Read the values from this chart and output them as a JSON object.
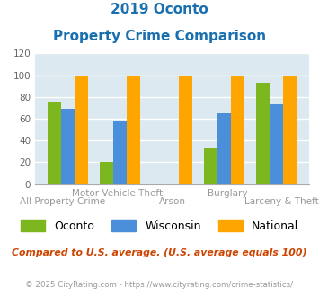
{
  "title_line1": "2019 Oconto",
  "title_line2": "Property Crime Comparison",
  "title_color": "#1a6faf",
  "groups": [
    {
      "label": "All Property Crime",
      "oconto": 76,
      "wisconsin": 69,
      "national": 100
    },
    {
      "label": "Motor Vehicle Theft",
      "oconto": 20,
      "wisconsin": 58,
      "national": 100
    },
    {
      "label": "Arson",
      "oconto": 0,
      "wisconsin": 0,
      "national": 100
    },
    {
      "label": "Burglary",
      "oconto": 33,
      "wisconsin": 65,
      "national": 100
    },
    {
      "label": "Larceny & Theft",
      "oconto": 93,
      "wisconsin": 73,
      "national": 100
    }
  ],
  "color_oconto": "#7db720",
  "color_wisconsin": "#4b8fdb",
  "color_national": "#ffa500",
  "ylim": [
    0,
    120
  ],
  "yticks": [
    0,
    20,
    40,
    60,
    80,
    100,
    120
  ],
  "bg_color": "#dce9f0",
  "grid_color": "#ffffff",
  "note_text": "Compared to U.S. average. (U.S. average equals 100)",
  "note_color": "#cc4400",
  "footer_text": "© 2025 CityRating.com - https://www.cityrating.com/crime-statistics/",
  "footer_color": "#999999",
  "xlabel_color": "#999999",
  "xlabel_labels_top": [
    "",
    "Motor Vehicle Theft",
    "",
    "Burglary",
    ""
  ],
  "xlabel_labels_bottom": [
    "All Property Crime",
    "",
    "Arson",
    "",
    "Larceny & Theft"
  ],
  "legend_labels": [
    "Oconto",
    "Wisconsin",
    "National"
  ]
}
